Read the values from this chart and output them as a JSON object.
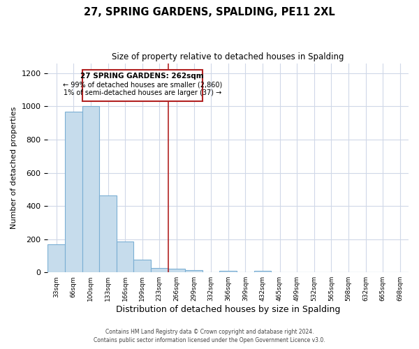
{
  "title": "27, SPRING GARDENS, SPALDING, PE11 2XL",
  "subtitle": "Size of property relative to detached houses in Spalding",
  "xlabel": "Distribution of detached houses by size in Spalding",
  "ylabel": "Number of detached properties",
  "bar_labels": [
    "33sqm",
    "66sqm",
    "100sqm",
    "133sqm",
    "166sqm",
    "199sqm",
    "233sqm",
    "266sqm",
    "299sqm",
    "332sqm",
    "366sqm",
    "399sqm",
    "432sqm",
    "465sqm",
    "499sqm",
    "532sqm",
    "565sqm",
    "598sqm",
    "632sqm",
    "665sqm",
    "698sqm"
  ],
  "bar_values": [
    170,
    970,
    1000,
    465,
    185,
    75,
    25,
    20,
    15,
    0,
    10,
    0,
    10,
    0,
    0,
    0,
    0,
    0,
    0,
    0,
    0
  ],
  "bar_color": "#c6dcec",
  "bar_edge_color": "#7bafd4",
  "property_label": "27 SPRING GARDENS: 262sqm",
  "annotation_line1": "← 99% of detached houses are smaller (2,860)",
  "annotation_line2": "1% of semi-detached houses are larger (37) →",
  "vline_color": "#b22222",
  "vline_x_index": 7,
  "ylim": [
    0,
    1260
  ],
  "yticks": [
    0,
    200,
    400,
    600,
    800,
    1000,
    1200
  ],
  "footer_line1": "Contains HM Land Registry data © Crown copyright and database right 2024.",
  "footer_line2": "Contains public sector information licensed under the Open Government Licence v3.0.",
  "background_color": "#ffffff",
  "grid_color": "#d0d8e8"
}
